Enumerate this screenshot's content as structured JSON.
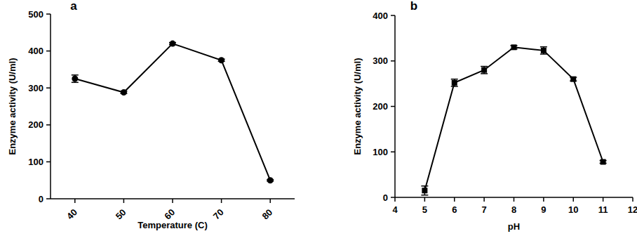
{
  "chart_data": [
    {
      "type": "line",
      "title": "a",
      "x_label": "Temperature (C)",
      "y_label": "Enzyme activity (U/ml)",
      "categories": [
        "40",
        "50",
        "60",
        "70",
        "80"
      ],
      "values": [
        325,
        288,
        420,
        375,
        50
      ],
      "errors": [
        10,
        3,
        3,
        3,
        2
      ],
      "ylim": [
        0,
        500
      ],
      "yticks": [
        0,
        100,
        200,
        300,
        400,
        500
      ],
      "color": "#000000",
      "marker": "circle"
    },
    {
      "type": "line",
      "title": "b",
      "x_label": "pH",
      "y_label": "Enzyme activity (U/ml)",
      "x": [
        5,
        6,
        7,
        8,
        9,
        10,
        11
      ],
      "values": [
        15,
        252,
        280,
        330,
        323,
        260,
        78
      ],
      "errors": [
        10,
        8,
        8,
        4,
        8,
        4,
        3
      ],
      "xlim": [
        4,
        12
      ],
      "xticks": [
        4,
        5,
        6,
        7,
        8,
        9,
        10,
        11,
        12
      ],
      "ylim": [
        0,
        400
      ],
      "yticks": [
        0,
        100,
        200,
        300,
        400
      ],
      "color": "#000000",
      "marker": "square"
    }
  ]
}
